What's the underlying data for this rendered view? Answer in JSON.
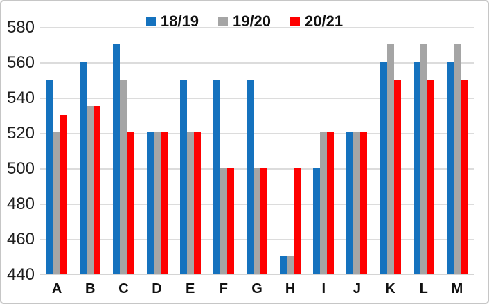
{
  "chart_data": {
    "type": "bar",
    "title": "",
    "xlabel": "",
    "ylabel": "",
    "categories": [
      "A",
      "B",
      "C",
      "D",
      "E",
      "F",
      "G",
      "H",
      "I",
      "J",
      "K",
      "L",
      "M"
    ],
    "series": [
      {
        "name": "18/19",
        "color": "#1572be",
        "values": [
          550,
          560,
          570,
          520,
          550,
          550,
          550,
          450,
          500,
          520,
          560,
          560,
          560
        ]
      },
      {
        "name": "19/20",
        "color": "#a5a5a5",
        "values": [
          520,
          535,
          550,
          520,
          520,
          500,
          500,
          450,
          520,
          520,
          570,
          570,
          570
        ]
      },
      {
        "name": "20/21",
        "color": "#fe0000",
        "values": [
          530,
          535,
          520,
          520,
          520,
          500,
          500,
          500,
          520,
          520,
          550,
          550,
          550
        ]
      }
    ],
    "ylim": [
      440,
      580
    ],
    "yticks": [
      440,
      460,
      480,
      500,
      520,
      540,
      560,
      580
    ],
    "grid": true,
    "legend_position": "top-center"
  },
  "style": {
    "gridline_color": "#dcdcdc",
    "axisline_color": "#d4d4d4",
    "background_color": "#ffffff",
    "border_color": "#c6c6c6",
    "text_color": "#1f1f1f"
  }
}
